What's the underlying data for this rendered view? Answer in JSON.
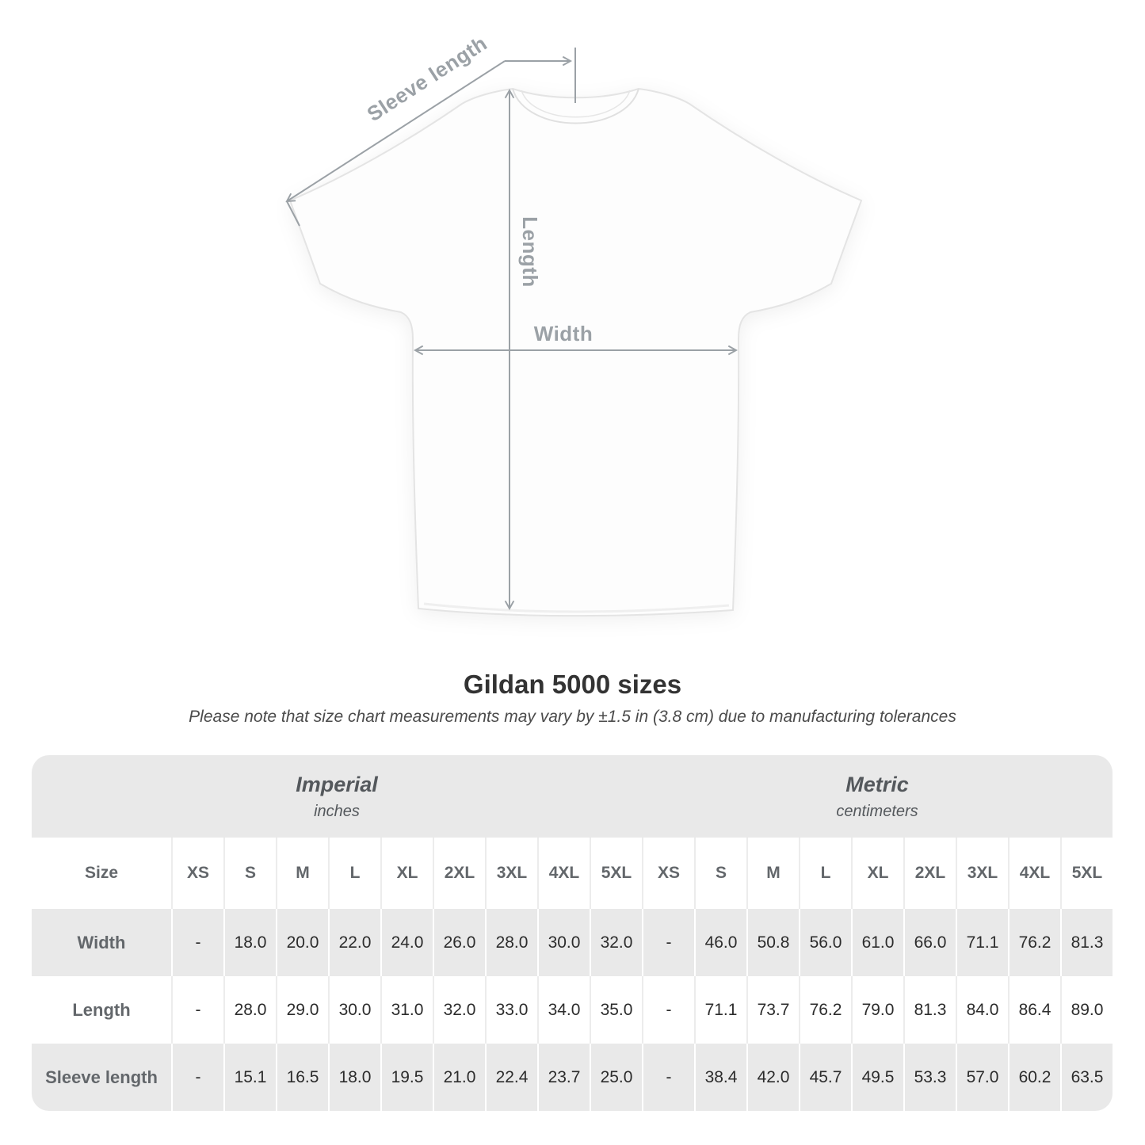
{
  "title": "Gildan 5000 sizes",
  "subtitle": "Please note that size chart measurements may vary by ±1.5 in (3.8 cm) due to manufacturing tolerances",
  "diagram": {
    "sleeve_label": "Sleeve length",
    "length_label": "Length",
    "width_label": "Width"
  },
  "chart_data": {
    "type": "table",
    "title": "Gildan 5000 sizes",
    "unit_groups": [
      {
        "name": "Imperial",
        "unit": "inches"
      },
      {
        "name": "Metric",
        "unit": "centimeters"
      }
    ],
    "size_header_label": "Size",
    "sizes": [
      "XS",
      "S",
      "M",
      "L",
      "XL",
      "2XL",
      "3XL",
      "4XL",
      "5XL"
    ],
    "rows": [
      {
        "label": "Width",
        "imperial": [
          "-",
          "18.0",
          "20.0",
          "22.0",
          "24.0",
          "26.0",
          "28.0",
          "30.0",
          "32.0"
        ],
        "metric": [
          "-",
          "46.0",
          "50.8",
          "56.0",
          "61.0",
          "66.0",
          "71.1",
          "76.2",
          "81.3"
        ]
      },
      {
        "label": "Length",
        "imperial": [
          "-",
          "28.0",
          "29.0",
          "30.0",
          "31.0",
          "32.0",
          "33.0",
          "34.0",
          "35.0"
        ],
        "metric": [
          "-",
          "71.1",
          "73.7",
          "76.2",
          "79.0",
          "81.3",
          "84.0",
          "86.4",
          "89.0"
        ]
      },
      {
        "label": "Sleeve length",
        "imperial": [
          "-",
          "15.1",
          "16.5",
          "18.0",
          "19.5",
          "21.0",
          "22.4",
          "23.7",
          "25.0"
        ],
        "metric": [
          "-",
          "38.4",
          "42.0",
          "45.7",
          "49.5",
          "53.3",
          "57.0",
          "60.2",
          "63.5"
        ]
      }
    ]
  },
  "colors": {
    "band_gray": "#e9e9e9",
    "header_text": "#63676b",
    "value_text": "#2c2c2c",
    "diagram_gray": "#9ba1a6",
    "title_text": "#333333"
  }
}
